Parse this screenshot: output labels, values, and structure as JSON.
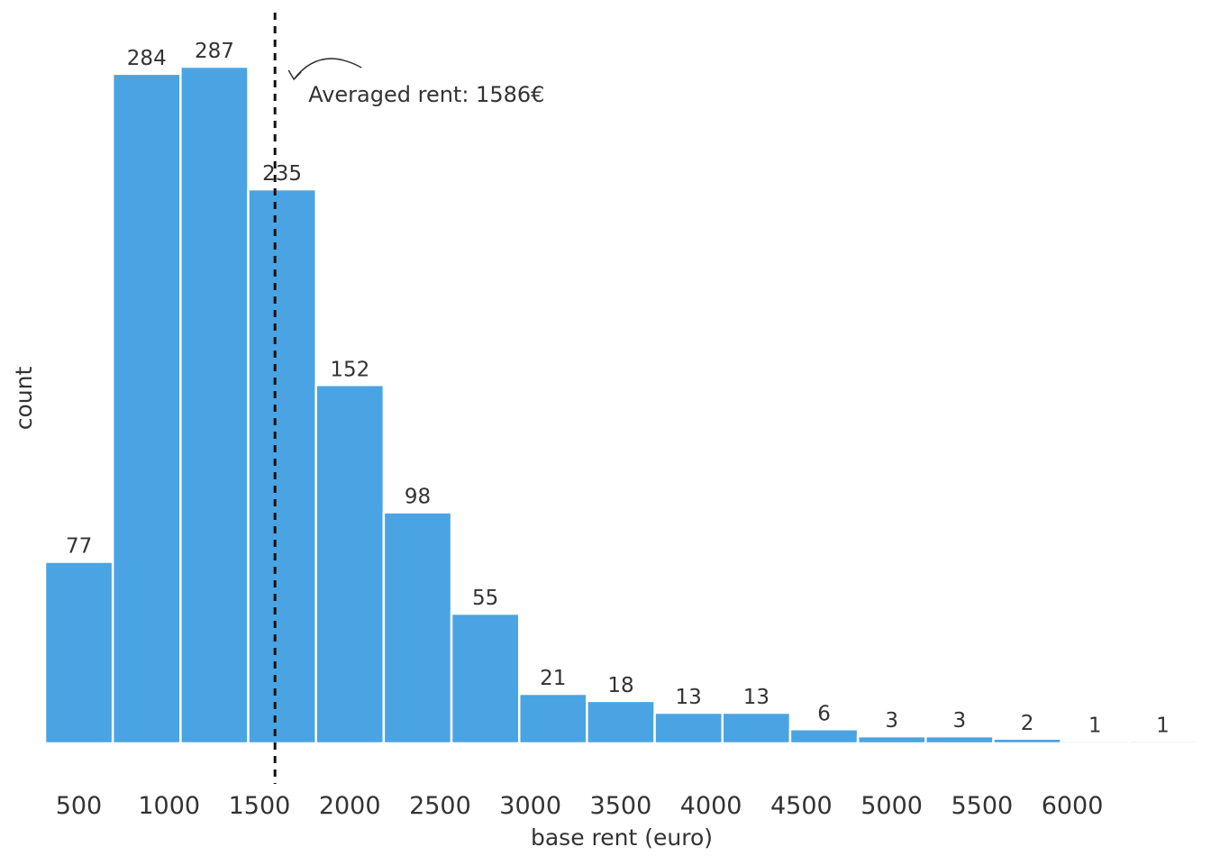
{
  "chart_data": {
    "type": "bar",
    "bin_width": 375,
    "bin_start": 313,
    "counts": [
      77,
      284,
      287,
      235,
      152,
      98,
      55,
      21,
      18,
      13,
      13,
      6,
      3,
      3,
      2,
      1,
      1
    ],
    "xlabel": "base rent (euro)",
    "ylabel": "count",
    "x_ticks": [
      500,
      1000,
      1500,
      2000,
      2500,
      3000,
      3500,
      4000,
      4500,
      5000,
      5500,
      6000
    ],
    "xlim": [
      313,
      6688
    ],
    "ylim": [
      0,
      300
    ],
    "grid": false,
    "mean_line": {
      "value": 1586,
      "label": "Averaged rent: 1586€"
    },
    "colors": {
      "bar": "#4aa4e3",
      "bar_edge": "#ffffff",
      "mean_line": "#111111",
      "text": "#333333"
    }
  }
}
